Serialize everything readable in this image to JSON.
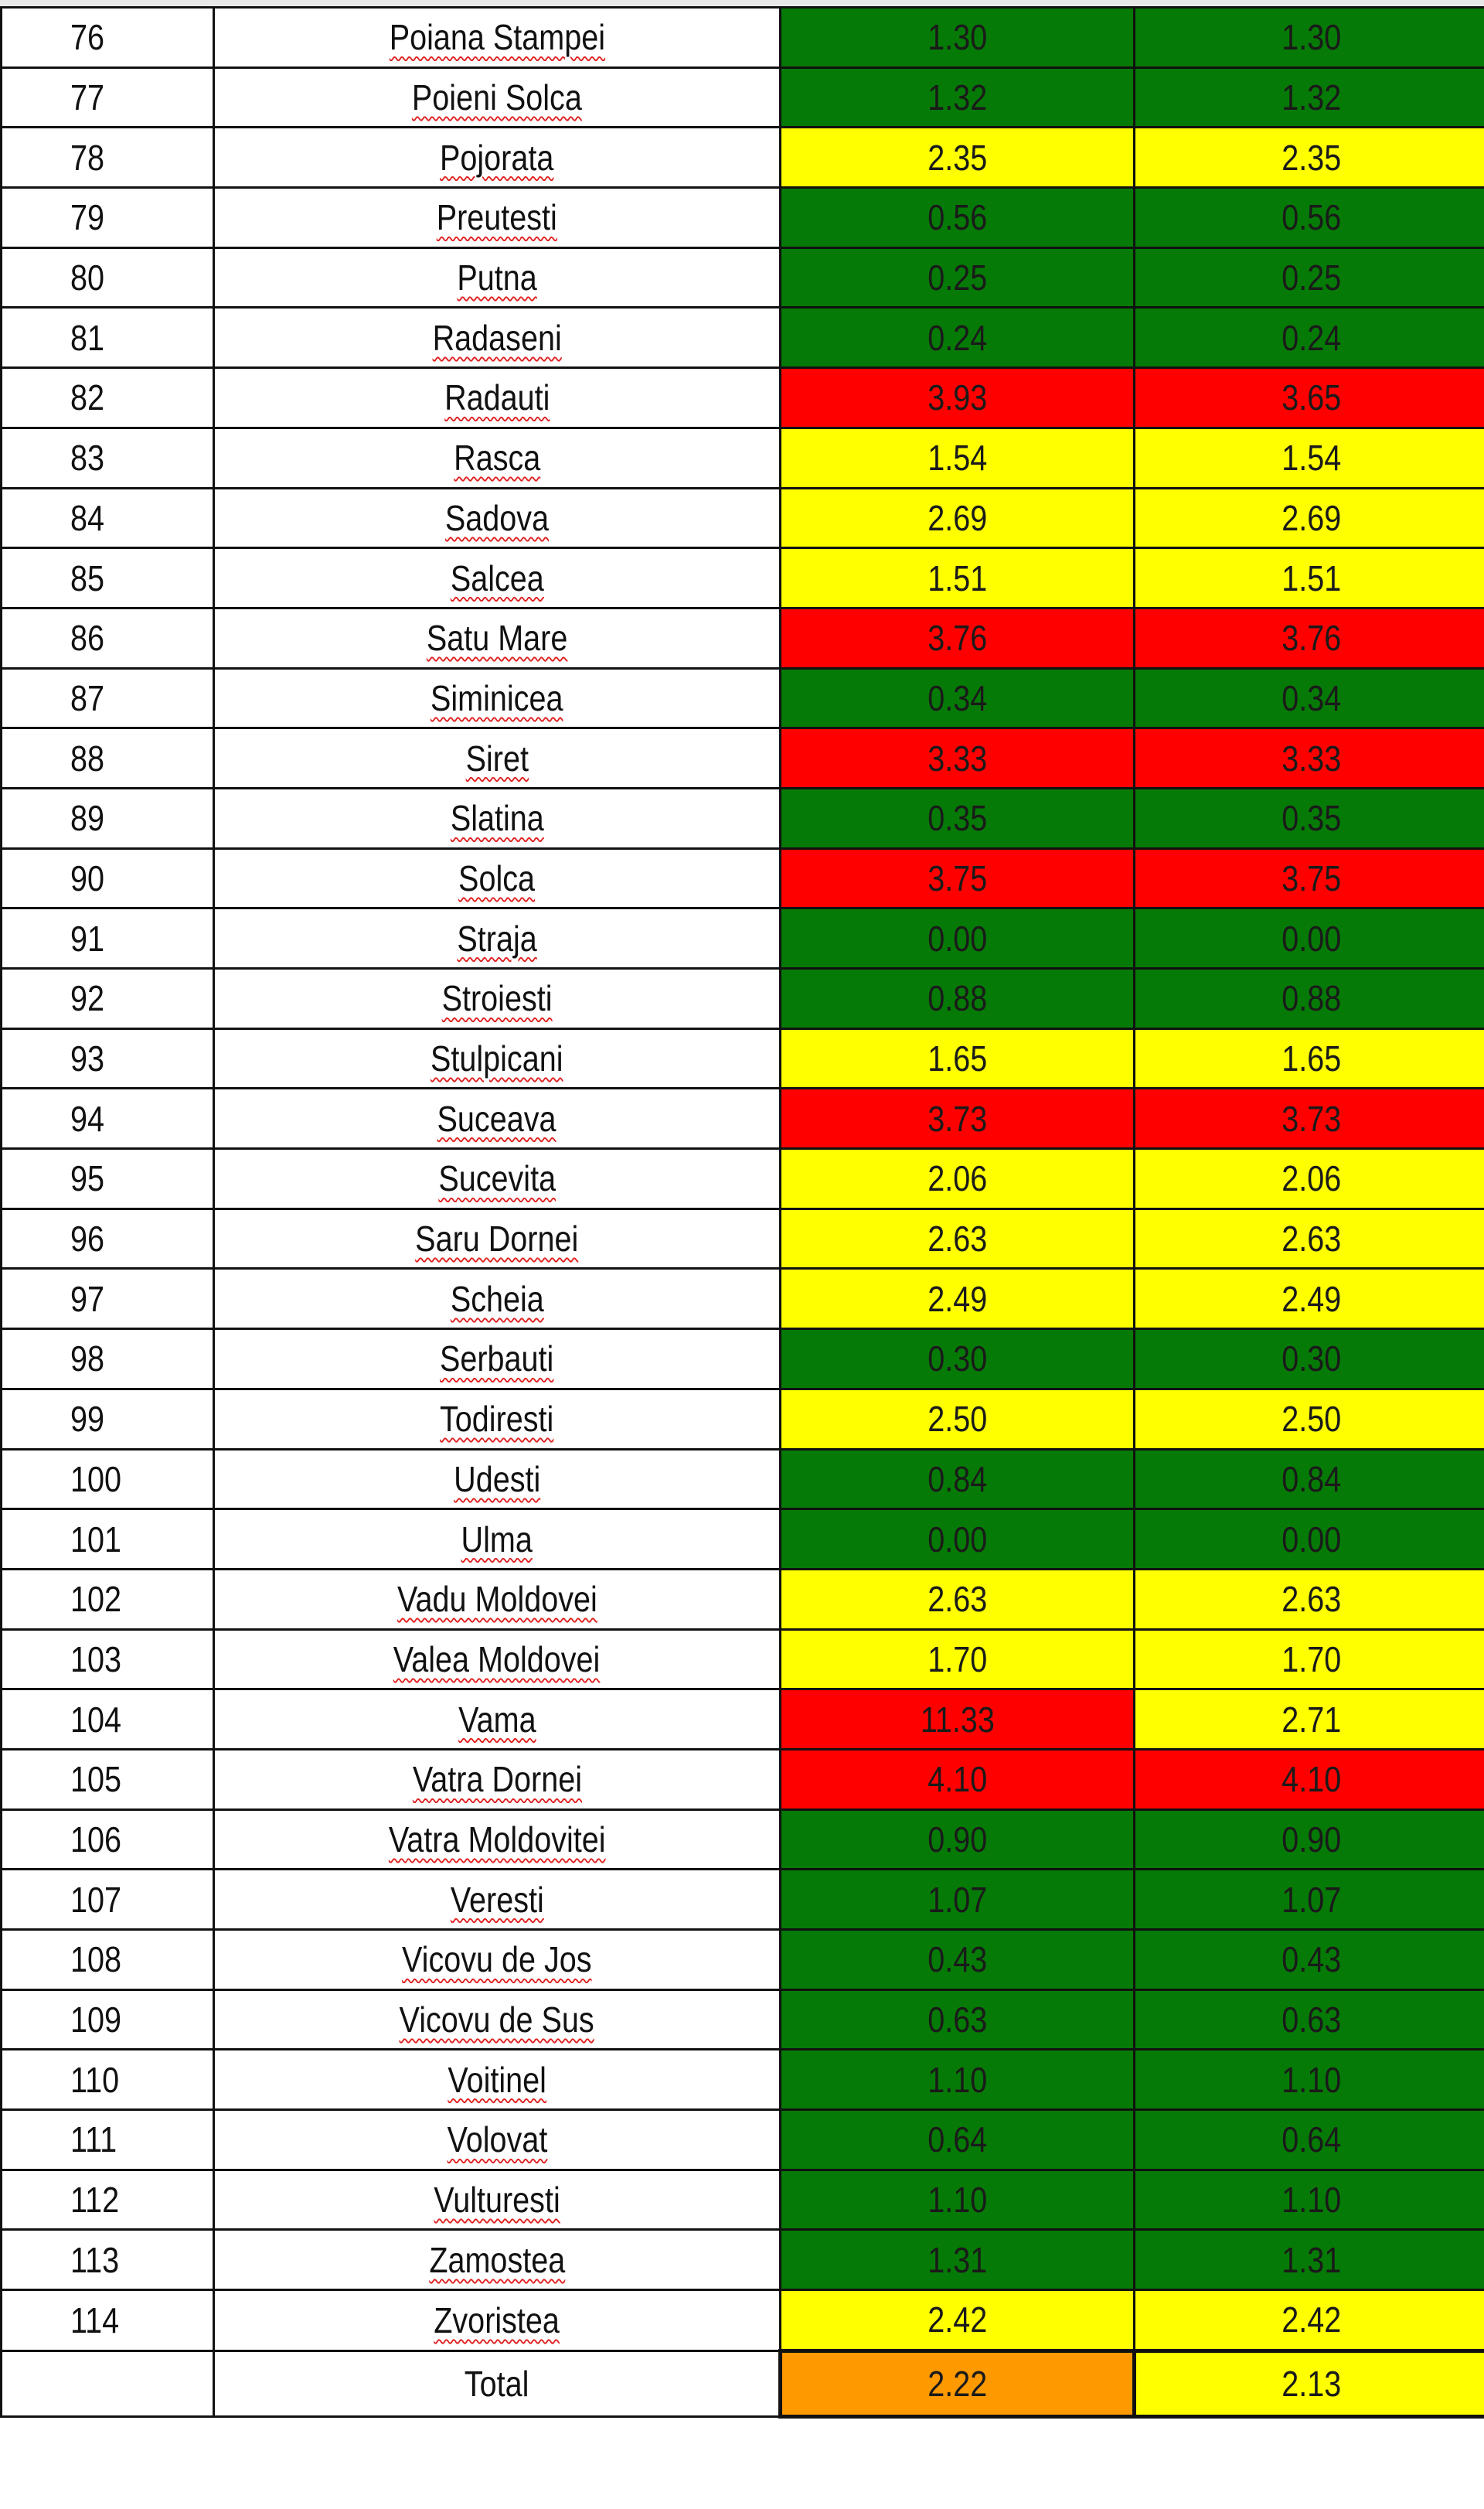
{
  "colors": {
    "green": "#067a06",
    "yellow": "#ffff00",
    "red": "#ff0000",
    "orange": "#ff9900"
  },
  "rows": [
    {
      "no": "76",
      "name": "Poiana Stampei",
      "v1": "1.30",
      "v2": "1.30",
      "c1": "green",
      "c2": "green"
    },
    {
      "no": "77",
      "name": "Poieni Solca",
      "v1": "1.32",
      "v2": "1.32",
      "c1": "green",
      "c2": "green"
    },
    {
      "no": "78",
      "name": "Pojorata",
      "v1": "2.35",
      "v2": "2.35",
      "c1": "yellow",
      "c2": "yellow"
    },
    {
      "no": "79",
      "name": "Preutesti",
      "v1": "0.56",
      "v2": "0.56",
      "c1": "green",
      "c2": "green"
    },
    {
      "no": "80",
      "name": "Putna",
      "v1": "0.25",
      "v2": "0.25",
      "c1": "green",
      "c2": "green"
    },
    {
      "no": "81",
      "name": "Radaseni",
      "v1": "0.24",
      "v2": "0.24",
      "c1": "green",
      "c2": "green"
    },
    {
      "no": "82",
      "name": "Radauti",
      "v1": "3.93",
      "v2": "3.65",
      "c1": "red",
      "c2": "red"
    },
    {
      "no": "83",
      "name": "Rasca",
      "v1": "1.54",
      "v2": "1.54",
      "c1": "yellow",
      "c2": "yellow"
    },
    {
      "no": "84",
      "name": "Sadova",
      "v1": "2.69",
      "v2": "2.69",
      "c1": "yellow",
      "c2": "yellow"
    },
    {
      "no": "85",
      "name": "Salcea",
      "v1": "1.51",
      "v2": "1.51",
      "c1": "yellow",
      "c2": "yellow"
    },
    {
      "no": "86",
      "name": "Satu Mare",
      "v1": "3.76",
      "v2": "3.76",
      "c1": "red",
      "c2": "red"
    },
    {
      "no": "87",
      "name": "Siminicea",
      "v1": "0.34",
      "v2": "0.34",
      "c1": "green",
      "c2": "green"
    },
    {
      "no": "88",
      "name": "Siret",
      "v1": "3.33",
      "v2": "3.33",
      "c1": "red",
      "c2": "red"
    },
    {
      "no": "89",
      "name": "Slatina",
      "v1": "0.35",
      "v2": "0.35",
      "c1": "green",
      "c2": "green"
    },
    {
      "no": "90",
      "name": "Solca",
      "v1": "3.75",
      "v2": "3.75",
      "c1": "red",
      "c2": "red"
    },
    {
      "no": "91",
      "name": "Straja",
      "v1": "0.00",
      "v2": "0.00",
      "c1": "green",
      "c2": "green"
    },
    {
      "no": "92",
      "name": "Stroiesti",
      "v1": "0.88",
      "v2": "0.88",
      "c1": "green",
      "c2": "green"
    },
    {
      "no": "93",
      "name": "Stulpicani",
      "v1": "1.65",
      "v2": "1.65",
      "c1": "yellow",
      "c2": "yellow"
    },
    {
      "no": "94",
      "name": "Suceava",
      "v1": "3.73",
      "v2": "3.73",
      "c1": "red",
      "c2": "red"
    },
    {
      "no": "95",
      "name": "Sucevita",
      "v1": "2.06",
      "v2": "2.06",
      "c1": "yellow",
      "c2": "yellow"
    },
    {
      "no": "96",
      "name": "Saru Dornei",
      "v1": "2.63",
      "v2": "2.63",
      "c1": "yellow",
      "c2": "yellow"
    },
    {
      "no": "97",
      "name": "Scheia",
      "v1": "2.49",
      "v2": "2.49",
      "c1": "yellow",
      "c2": "yellow"
    },
    {
      "no": "98",
      "name": "Serbauti",
      "v1": "0.30",
      "v2": "0.30",
      "c1": "green",
      "c2": "green"
    },
    {
      "no": "99",
      "name": "Todiresti",
      "v1": "2.50",
      "v2": "2.50",
      "c1": "yellow",
      "c2": "yellow"
    },
    {
      "no": "100",
      "name": "Udesti",
      "v1": "0.84",
      "v2": "0.84",
      "c1": "green",
      "c2": "green"
    },
    {
      "no": "101",
      "name": "Ulma",
      "v1": "0.00",
      "v2": "0.00",
      "c1": "green",
      "c2": "green"
    },
    {
      "no": "102",
      "name": "Vadu Moldovei",
      "v1": "2.63",
      "v2": "2.63",
      "c1": "yellow",
      "c2": "yellow"
    },
    {
      "no": "103",
      "name": "Valea Moldovei",
      "v1": "1.70",
      "v2": "1.70",
      "c1": "yellow",
      "c2": "yellow"
    },
    {
      "no": "104",
      "name": "Vama",
      "v1": "11.33",
      "v2": "2.71",
      "c1": "red",
      "c2": "yellow"
    },
    {
      "no": "105",
      "name": "Vatra Dornei",
      "v1": "4.10",
      "v2": "4.10",
      "c1": "red",
      "c2": "red"
    },
    {
      "no": "106",
      "name": "Vatra Moldovitei",
      "v1": "0.90",
      "v2": "0.90",
      "c1": "green",
      "c2": "green"
    },
    {
      "no": "107",
      "name": "Veresti",
      "v1": "1.07",
      "v2": "1.07",
      "c1": "green",
      "c2": "green"
    },
    {
      "no": "108",
      "name": "Vicovu de Jos",
      "v1": "0.43",
      "v2": "0.43",
      "c1": "green",
      "c2": "green"
    },
    {
      "no": "109",
      "name": "Vicovu de Sus",
      "v1": "0.63",
      "v2": "0.63",
      "c1": "green",
      "c2": "green"
    },
    {
      "no": "110",
      "name": "Voitinel",
      "v1": "1.10",
      "v2": "1.10",
      "c1": "green",
      "c2": "green"
    },
    {
      "no": "111",
      "name": "Volovat",
      "v1": "0.64",
      "v2": "0.64",
      "c1": "green",
      "c2": "green"
    },
    {
      "no": "112",
      "name": "Vulturesti",
      "v1": "1.10",
      "v2": "1.10",
      "c1": "green",
      "c2": "green"
    },
    {
      "no": "113",
      "name": "Zamostea",
      "v1": "1.31",
      "v2": "1.31",
      "c1": "green",
      "c2": "green"
    },
    {
      "no": "114",
      "name": "Zvoristea",
      "v1": "2.42",
      "v2": "2.42",
      "c1": "yellow",
      "c2": "yellow"
    }
  ],
  "total": {
    "label": "Total",
    "v1": "2.22",
    "v2": "2.13",
    "c1": "orange",
    "c2": "yellow"
  }
}
